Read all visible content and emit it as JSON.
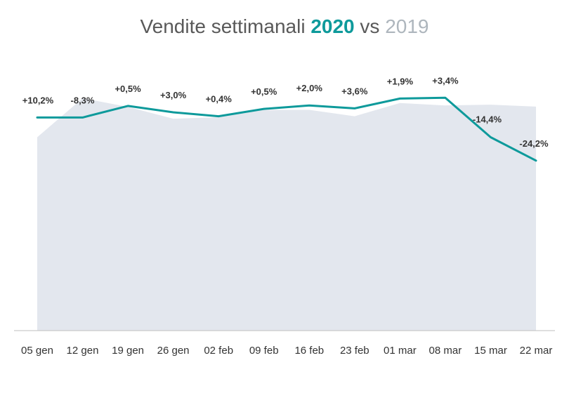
{
  "title": {
    "prefix": "Vendite settimanali",
    "year_a": "2020",
    "middle": "vs",
    "year_b": "2019"
  },
  "colors": {
    "series_2020": "#0e9a9b",
    "series_2019": "#e3e7ee",
    "axis": "#bfbfbf",
    "title": "#595959",
    "title_2019": "#aeb6bd"
  },
  "chart_data": {
    "type": "area",
    "categories": [
      "05 gen",
      "12 gen",
      "19 gen",
      "26 gen",
      "02 feb",
      "09 feb",
      "16 feb",
      "23 feb",
      "01 mar",
      "08 mar",
      "15 mar",
      "22 mar"
    ],
    "series": [
      {
        "name": "2020",
        "type": "line",
        "values": [
          86.5,
          86.5,
          91.2,
          88.6,
          87.0,
          90.0,
          91.4,
          90.2,
          94.2,
          94.5,
          78.5,
          69.0
        ]
      },
      {
        "name": "2019",
        "type": "area",
        "values": [
          78.5,
          94.3,
          90.8,
          86.0,
          86.6,
          89.6,
          89.6,
          87.0,
          92.4,
          91.4,
          91.7,
          90.9
        ]
      }
    ],
    "data_labels": [
      "+10,2%",
      "-8,3%",
      "+0,5%",
      "+3,0%",
      "+0,4%",
      "+0,5%",
      "+2,0%",
      "+3,6%",
      "+1,9%",
      "+3,4%",
      "-14,4%",
      "-24,2%"
    ],
    "ylim": [
      0,
      100
    ],
    "xlabel": "",
    "ylabel": "",
    "grid": false,
    "legend": "none"
  }
}
